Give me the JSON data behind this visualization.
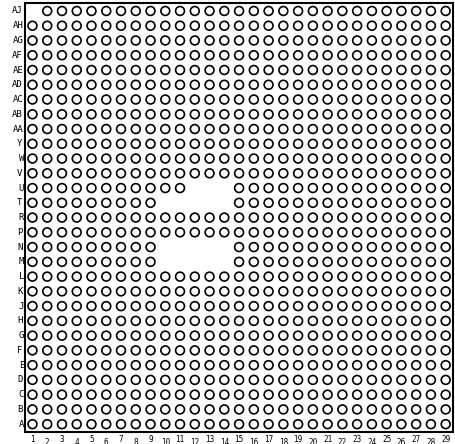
{
  "row_labels_top_to_bottom": [
    "AJ",
    "AH",
    "AG",
    "AF",
    "AE",
    "AD",
    "AC",
    "AB",
    "AA",
    "Y",
    "W",
    "V",
    "U",
    "T",
    "R",
    "P",
    "N",
    "M",
    "L",
    "K",
    "J",
    "H",
    "G",
    "F",
    "E",
    "D",
    "C",
    "B",
    "A"
  ],
  "n_cols": 29,
  "bg_color": "#ffffff",
  "circle_fill": "#ffffff",
  "circle_edge": "#000000",
  "circle_lw": 1.2,
  "border_lw": 1.5,
  "row_label_fontsize": 6.5,
  "col_label_fontsize": 5.5,
  "fig_width": 4.56,
  "fig_height": 4.44,
  "dpi": 100,
  "left_indent_rows": [
    "AJ",
    "AF",
    "AD",
    "AB",
    "Y",
    "V",
    "T",
    "P",
    "N",
    "K",
    "H",
    "F",
    "D",
    "B"
  ],
  "right_indent_rows": [
    "AH",
    "AG",
    "AE",
    "AC",
    "AA",
    "W",
    "U",
    "R",
    "M",
    "L",
    "J",
    "G",
    "E",
    "C",
    "A"
  ]
}
